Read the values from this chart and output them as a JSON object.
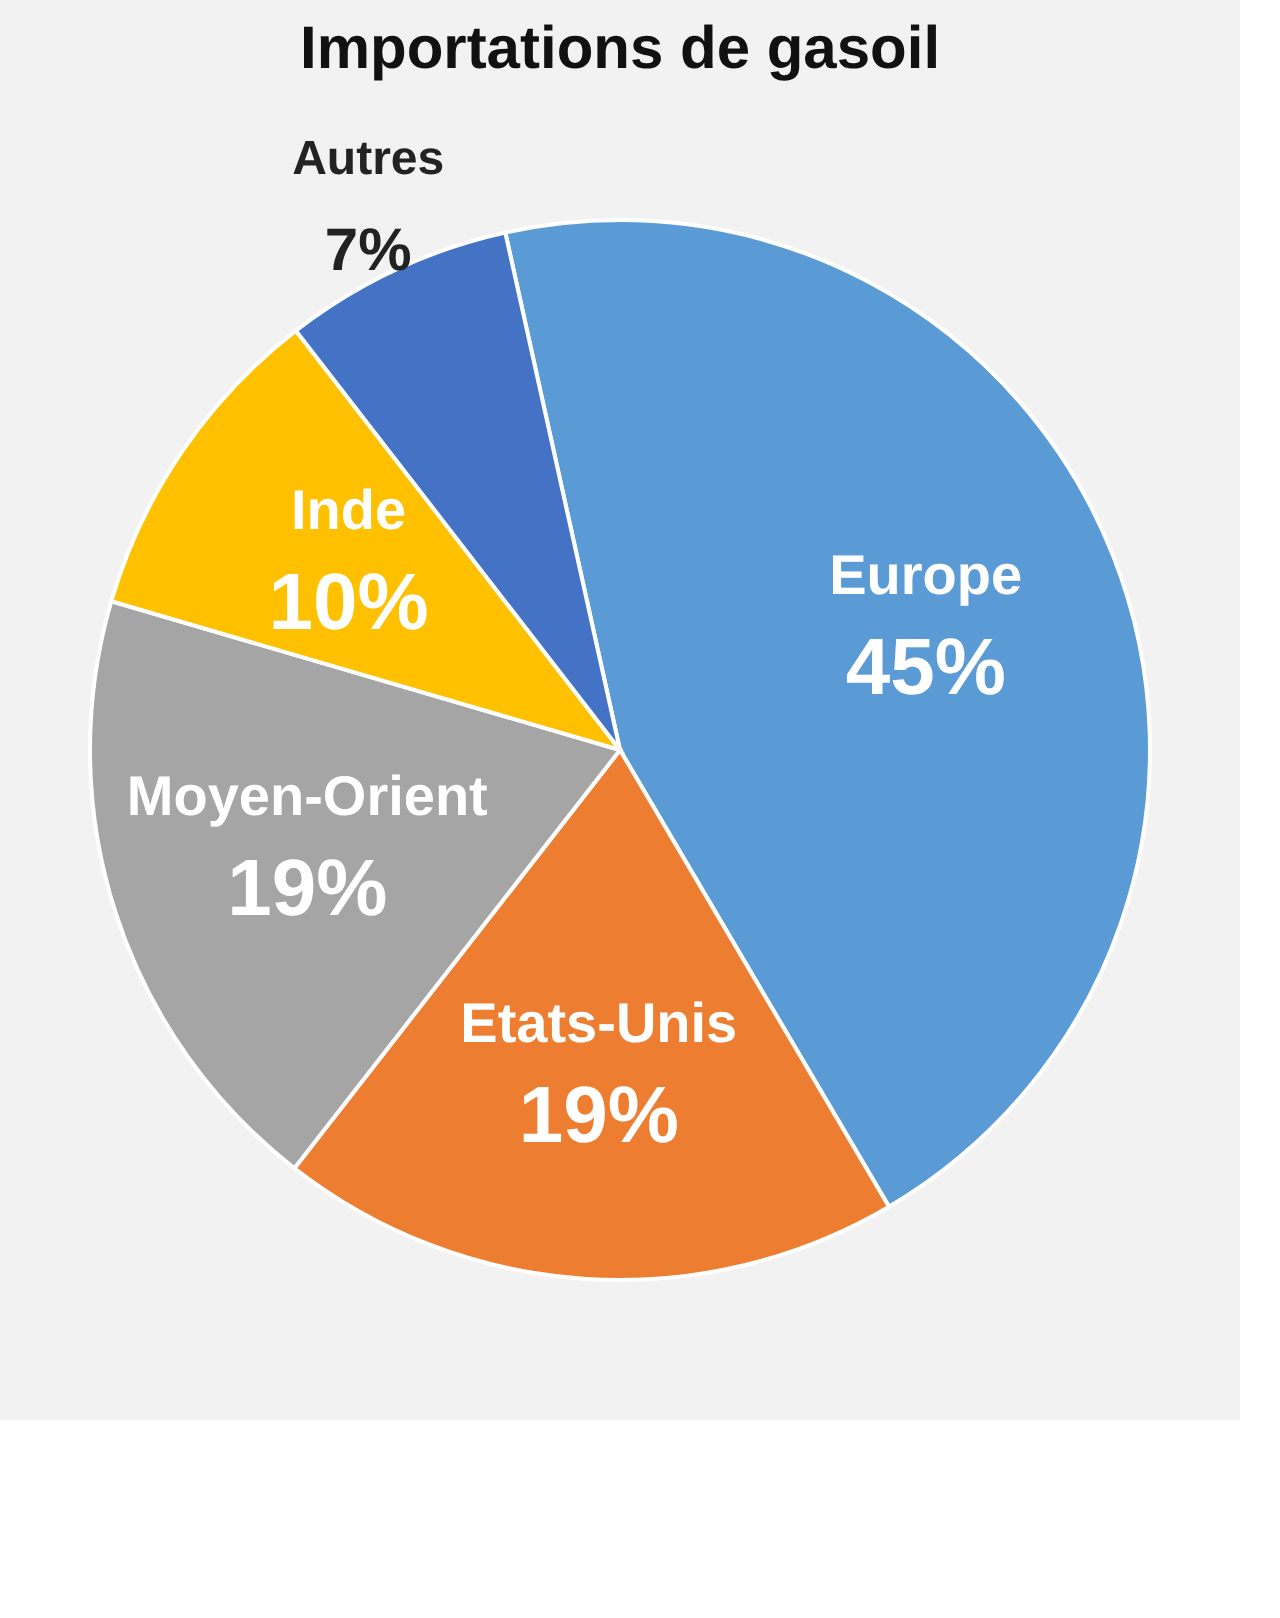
{
  "chart_data": {
    "type": "pie",
    "title": "Importations de gasoil",
    "categories": [
      "Europe",
      "Etats-Unis",
      "Moyen-Orient",
      "Inde",
      "Autres"
    ],
    "values": [
      45,
      19,
      19,
      10,
      7
    ],
    "value_labels": [
      "45%",
      "19%",
      "19%",
      "10%",
      "7%"
    ],
    "colors": [
      "#5b9bd5",
      "#ed7d31",
      "#a5a5a5",
      "#ffc000",
      "#4472c4"
    ],
    "legend": false
  }
}
